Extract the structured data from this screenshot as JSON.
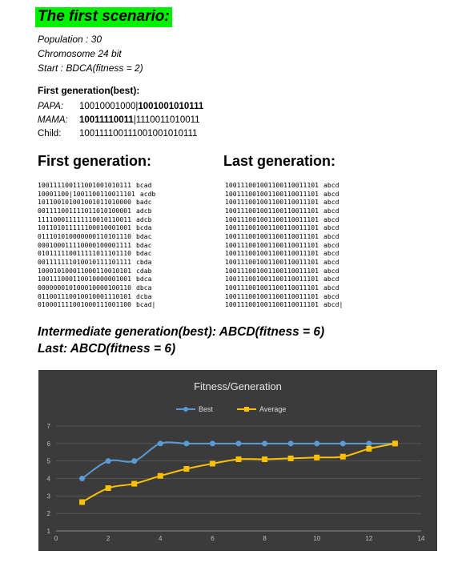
{
  "header": {
    "title": "The first scenario:"
  },
  "params": {
    "population": "Population : 30",
    "chromosome": "Chromosome  24 bit",
    "start": "Start : BDCA(fitness = 2)"
  },
  "first_gen_best": {
    "title": "First generation(best):",
    "papa": {
      "label": "PAPA:",
      "part1": "10010001000|",
      "part2": "1001001010111"
    },
    "mama": {
      "label": "MAMA:",
      "part1": "10011110011",
      "part2": "|1110011010011"
    },
    "child": {
      "label": "Child:",
      "value": "100111100111001001010111"
    }
  },
  "first_generation": {
    "title": "First generation:",
    "rows": [
      {
        "code": "100111100111001001010111",
        "name": "bcad"
      },
      {
        "code": "10001100|1001100110011101",
        "name": "acdb"
      },
      {
        "code": "101100101001001011010000",
        "name": "badc"
      },
      {
        "code": "001111001111011010100001",
        "name": "adcb"
      },
      {
        "code": "111100011111110010110011",
        "name": "adcb"
      },
      {
        "code": "101101011111100010001001",
        "name": "bcda"
      },
      {
        "code": "011101010000000110101110",
        "name": "bdac"
      },
      {
        "code": "000100011110000100001111",
        "name": "bdac"
      },
      {
        "code": "010111110011111011101110",
        "name": "bdac"
      },
      {
        "code": "001111111010010111101111",
        "name": "cbda"
      },
      {
        "code": "100010100011000110010101",
        "name": "cdab"
      },
      {
        "code": "100111000110010000001001",
        "name": "bdca"
      },
      {
        "code": "000000010100010000100110",
        "name": "dbca"
      },
      {
        "code": "011001110010010001110101",
        "name": "dcba"
      },
      {
        "code": "010001111001000111001100",
        "name": "bcad|"
      }
    ]
  },
  "last_generation": {
    "title": "Last generation:",
    "rows": [
      {
        "code": "100111001001100110011101",
        "name": "abcd"
      },
      {
        "code": "100111001001100110011101",
        "name": "abcd"
      },
      {
        "code": "100111001001100110011101",
        "name": "abcd"
      },
      {
        "code": "100111001001100110011101",
        "name": "abcd"
      },
      {
        "code": "100111001001100110011101",
        "name": "abcd"
      },
      {
        "code": "100111001001100110011101",
        "name": "abcd"
      },
      {
        "code": "100111001001100110011101",
        "name": "abcd"
      },
      {
        "code": "100111001001100110011101",
        "name": "abcd"
      },
      {
        "code": "100111001001100110011101",
        "name": "abcd"
      },
      {
        "code": "100111001001100110011101",
        "name": "abcd"
      },
      {
        "code": "100111001001100110011101",
        "name": "abcd"
      },
      {
        "code": "100111001001100110011101",
        "name": "abcd"
      },
      {
        "code": "100111001001100110011101",
        "name": "abcd"
      },
      {
        "code": "100111001001100110011101",
        "name": "abcd"
      },
      {
        "code": "100111001001100110011101",
        "name": "abcd|"
      }
    ]
  },
  "summary": {
    "intermediate": "Intermediate  generation(best):  ABCD(fitness = 6)",
    "last": "Last: ABCD(fitness = 6)"
  },
  "chart_data": {
    "type": "line",
    "title": "Fitness/Generation",
    "xlabel": "",
    "ylabel": "",
    "xlim": [
      0,
      14
    ],
    "ylim": [
      1,
      7
    ],
    "xticks": [
      0,
      2,
      4,
      6,
      8,
      10,
      12,
      14
    ],
    "yticks": [
      1,
      2,
      3,
      4,
      5,
      6,
      7
    ],
    "grid": true,
    "legend_position": "top",
    "background": "#3b3b3b",
    "x": [
      1,
      2,
      3,
      4,
      5,
      6,
      7,
      8,
      9,
      10,
      11,
      12,
      13
    ],
    "series": [
      {
        "name": "Best",
        "color": "#5b9bd5",
        "marker": "circle",
        "values": [
          4,
          5,
          5,
          6,
          6,
          6,
          6,
          6,
          6,
          6,
          6,
          6,
          6
        ]
      },
      {
        "name": "Average",
        "color": "#ffc000",
        "marker": "square",
        "values": [
          2.65,
          3.45,
          3.7,
          4.15,
          4.55,
          4.85,
          5.1,
          5.1,
          5.15,
          5.2,
          5.25,
          5.7,
          6.0
        ]
      }
    ]
  }
}
